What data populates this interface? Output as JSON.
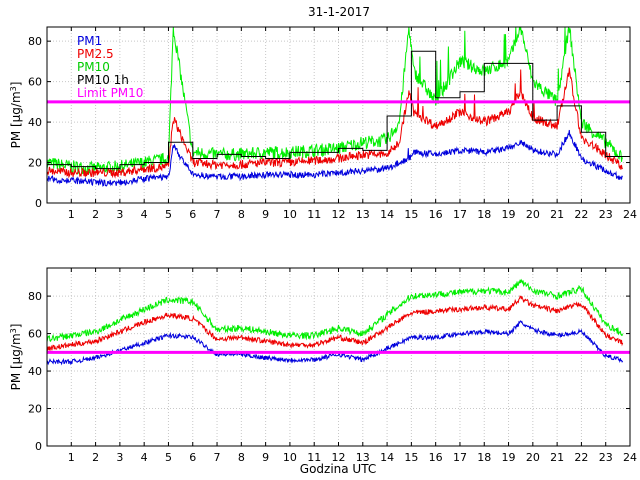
{
  "title": "31-1-2017",
  "xlabel": "Godzina UTC",
  "ylabel_prefix": "PM [µg/m",
  "ylabel_sup": "3",
  "ylabel_suffix": "]",
  "colors": {
    "pm1": "#0000dd",
    "pm25": "#ee0000",
    "pm10": "#00ee00",
    "pm10h": "#000000",
    "limit": "#ff00ff"
  },
  "chart_data": [
    {
      "type": "line",
      "panel": "top",
      "title": "31-1-2017",
      "xlabel": "",
      "ylabel": "PM [µg/m3]",
      "xlim": [
        0,
        24
      ],
      "ylim": [
        0,
        87
      ],
      "x_ticks": [
        "1",
        "2",
        "3",
        "4",
        "5",
        "6",
        "7",
        "8",
        "9",
        "10",
        "11",
        "12",
        "13",
        "14",
        "15",
        "16",
        "17",
        "18",
        "19",
        "20",
        "21",
        "22",
        "23",
        "24"
      ],
      "y_ticks": [
        "0",
        "20",
        "40",
        "60",
        "80"
      ],
      "grid": true,
      "legend": {
        "position": "top-left",
        "entries": [
          "PM1",
          "PM2.5",
          "PM10",
          "PM10 1h",
          "Limit PM10"
        ]
      },
      "series": [
        {
          "name": "PM1",
          "x": [
            0,
            1,
            2,
            3,
            4,
            5,
            5.2,
            6,
            7,
            8,
            9,
            10,
            11,
            12,
            13,
            14,
            14.5,
            14.9,
            15.1,
            16,
            17,
            18,
            19,
            19.5,
            20,
            21,
            21.5,
            22,
            23,
            23.7
          ],
          "values": [
            12,
            11,
            10,
            10,
            12,
            13,
            28,
            14,
            13,
            13,
            14,
            14,
            14,
            15,
            16,
            17,
            20,
            22,
            25,
            24,
            26,
            25,
            27,
            30,
            26,
            24,
            35,
            22,
            16,
            12
          ]
        },
        {
          "name": "PM2.5",
          "x": [
            0,
            1,
            2,
            3,
            4,
            5,
            5.2,
            6,
            7,
            8,
            9,
            10,
            11,
            12,
            13,
            14,
            14.5,
            14.9,
            15.1,
            16,
            17,
            18,
            19,
            19.5,
            20,
            21,
            21.5,
            22,
            23,
            23.7
          ],
          "values": [
            16,
            15,
            15,
            15,
            17,
            18,
            42,
            20,
            19,
            19,
            20,
            20,
            21,
            22,
            24,
            24,
            30,
            55,
            45,
            38,
            45,
            40,
            45,
            55,
            42,
            38,
            65,
            32,
            24,
            18
          ]
        },
        {
          "name": "PM10",
          "x": [
            0,
            1,
            2,
            3,
            4,
            5,
            5.2,
            6,
            7,
            8,
            9,
            10,
            11,
            12,
            13,
            14,
            14.5,
            14.9,
            15.1,
            16,
            17,
            18,
            19,
            19.5,
            20,
            21,
            21.5,
            22,
            23,
            23.7
          ],
          "values": [
            20,
            18,
            17,
            18,
            20,
            22,
            87,
            25,
            24,
            24,
            25,
            25,
            26,
            27,
            30,
            31,
            40,
            87,
            65,
            50,
            70,
            65,
            70,
            87,
            60,
            50,
            87,
            40,
            30,
            22
          ]
        },
        {
          "name": "PM10 1h",
          "x": [
            0,
            1,
            2,
            3,
            4,
            5,
            6,
            7,
            8,
            9,
            10,
            11,
            12,
            13,
            14,
            15,
            16,
            17,
            18,
            19,
            20,
            21,
            22,
            23
          ],
          "values": [
            19,
            18,
            17,
            19,
            20,
            30,
            22,
            24,
            23,
            22,
            25,
            25,
            27,
            26,
            43,
            75,
            52,
            55,
            69,
            69,
            41,
            48,
            35,
            23
          ]
        },
        {
          "name": "Limit PM10",
          "x": [
            0,
            24
          ],
          "values": [
            50,
            50
          ]
        }
      ]
    },
    {
      "type": "line",
      "panel": "bottom",
      "title": "",
      "xlabel": "Godzina UTC",
      "ylabel": "PM [µg/m3]",
      "xlim": [
        0,
        24
      ],
      "ylim": [
        0,
        95
      ],
      "x_ticks": [
        "1",
        "2",
        "3",
        "4",
        "5",
        "6",
        "7",
        "8",
        "9",
        "10",
        "11",
        "12",
        "13",
        "14",
        "15",
        "16",
        "17",
        "18",
        "19",
        "20",
        "21",
        "22",
        "23",
        "24"
      ],
      "y_ticks": [
        "0",
        "20",
        "40",
        "60",
        "80"
      ],
      "grid": true,
      "series": [
        {
          "name": "PM1",
          "x": [
            0,
            1,
            2,
            3,
            4,
            5,
            6,
            7,
            8,
            9,
            10,
            11,
            12,
            13,
            14,
            15,
            16,
            17,
            18,
            19,
            19.5,
            20,
            21,
            22,
            23,
            23.7
          ],
          "values": [
            45,
            45,
            47,
            51,
            55,
            59,
            58,
            49,
            49,
            47,
            46,
            46,
            49,
            46,
            52,
            58,
            58,
            60,
            61,
            60,
            66,
            62,
            59,
            61,
            48,
            46
          ]
        },
        {
          "name": "PM2.5",
          "x": [
            0,
            1,
            2,
            3,
            4,
            5,
            6,
            7,
            8,
            9,
            10,
            11,
            12,
            13,
            14,
            15,
            16,
            17,
            18,
            19,
            19.5,
            20,
            21,
            22,
            23,
            23.7
          ],
          "values": [
            52,
            54,
            56,
            61,
            66,
            70,
            68,
            57,
            58,
            56,
            54,
            54,
            58,
            55,
            63,
            71,
            72,
            73,
            74,
            73,
            79,
            75,
            72,
            76,
            59,
            55
          ]
        },
        {
          "name": "PM10",
          "x": [
            0,
            1,
            2,
            3,
            4,
            5,
            6,
            7,
            8,
            9,
            10,
            11,
            12,
            13,
            14,
            15,
            16,
            17,
            18,
            19,
            19.5,
            20,
            21,
            22,
            23,
            23.7
          ],
          "values": [
            57,
            59,
            61,
            67,
            73,
            78,
            77,
            62,
            63,
            61,
            59,
            59,
            63,
            60,
            70,
            80,
            81,
            82,
            83,
            82,
            88,
            83,
            80,
            84,
            65,
            60
          ]
        },
        {
          "name": "Limit PM10",
          "x": [
            0,
            24
          ],
          "values": [
            50,
            50
          ]
        }
      ]
    }
  ]
}
